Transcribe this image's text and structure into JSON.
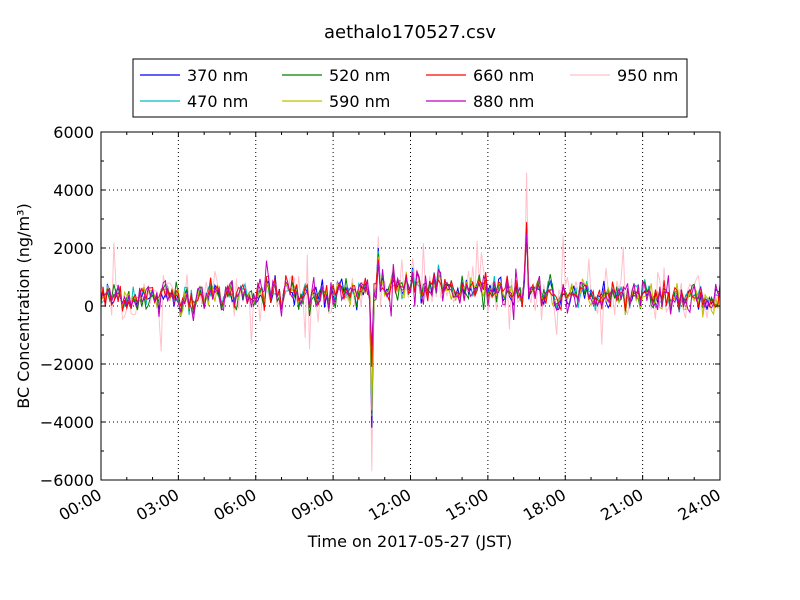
{
  "chart_data": {
    "type": "line",
    "title": "aethalo170527.csv",
    "xlabel": "Time on 2017-05-27 (JST)",
    "ylabel": "BC Concentration (ng/m³)",
    "xlim_hours": [
      0,
      24
    ],
    "ylim": [
      -6000,
      6000
    ],
    "yticks": [
      "6000",
      "4000",
      "2000",
      "0",
      "−2000",
      "−4000",
      "−6000"
    ],
    "ytick_values": [
      6000,
      4000,
      2000,
      0,
      -2000,
      -4000,
      -6000
    ],
    "xticks": [
      "00:00",
      "03:00",
      "06:00",
      "09:00",
      "12:00",
      "15:00",
      "18:00",
      "21:00",
      "24:00"
    ],
    "grid": true,
    "legend_position": "top-center",
    "series": [
      {
        "name": "370 nm",
        "color": "#0000ff"
      },
      {
        "name": "470 nm",
        "color": "#00bfbf"
      },
      {
        "name": "520 nm",
        "color": "#008000"
      },
      {
        "name": "590 nm",
        "color": "#bfbf00"
      },
      {
        "name": "660 nm",
        "color": "#ff0000"
      },
      {
        "name": "880 nm",
        "color": "#bf00bf"
      },
      {
        "name": "950 nm",
        "color": "#ffc0cb"
      }
    ],
    "sampling_minutes": 5,
    "baseline_profile": [
      {
        "hour": 0,
        "value": 300
      },
      {
        "hour": 3,
        "value": 320
      },
      {
        "hour": 6,
        "value": 420
      },
      {
        "hour": 9,
        "value": 420
      },
      {
        "hour": 10.5,
        "value": 450
      },
      {
        "hour": 11,
        "value": 650
      },
      {
        "hour": 12,
        "value": 700
      },
      {
        "hour": 14,
        "value": 550
      },
      {
        "hour": 16,
        "value": 500
      },
      {
        "hour": 18,
        "value": 400
      },
      {
        "hour": 21,
        "value": 300
      },
      {
        "hour": 24,
        "value": 250
      }
    ],
    "events": [
      {
        "hour": 10.5,
        "values": {
          "370 nm": -4200,
          "470 nm": -3800,
          "520 nm": -3700,
          "590 nm": -3600,
          "660 nm": -2100,
          "880 nm": -1400,
          "950 nm": -5700
        }
      },
      {
        "hour": 10.75,
        "values": {
          "370 nm": 2000,
          "470 nm": 1900,
          "520 nm": 1800,
          "590 nm": 1700,
          "660 nm": 1600,
          "880 nm": 1500,
          "950 nm": 2400
        }
      },
      {
        "hour": 16.5,
        "values": {
          "370 nm": 2700,
          "470 nm": 2600,
          "520 nm": 2500,
          "590 nm": 2400,
          "660 nm": 2900,
          "880 nm": 2500,
          "950 nm": 4600
        }
      }
    ]
  }
}
